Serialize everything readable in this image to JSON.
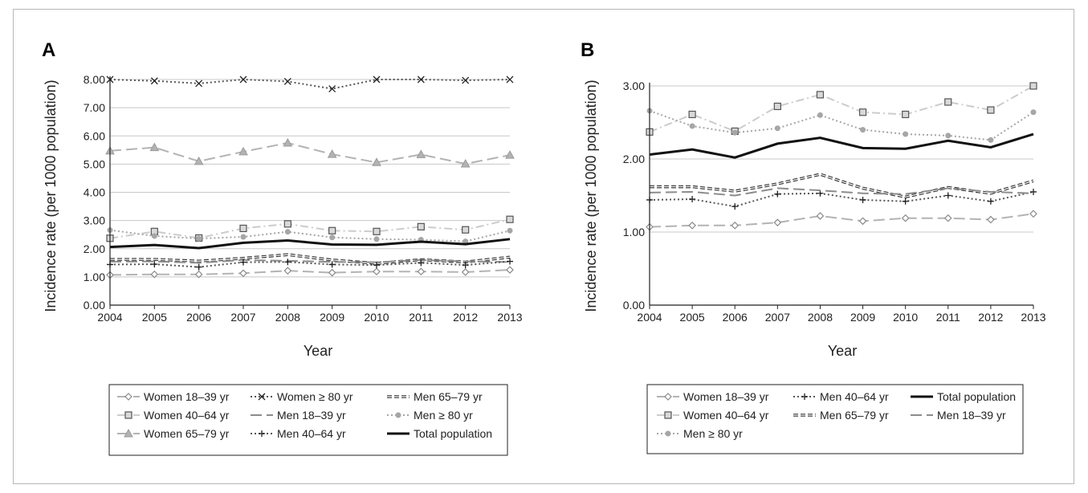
{
  "chart_data": [
    {
      "type": "line",
      "panel": "A",
      "xlabel": "Year",
      "ylabel": "Incidence rate (per 1000 population)",
      "x": [
        2004,
        2005,
        2006,
        2007,
        2008,
        2009,
        2010,
        2011,
        2012,
        2013
      ],
      "ylim": [
        0,
        8
      ],
      "yticks": [
        "0.00",
        "1.00",
        "2.00",
        "3.00",
        "4.00",
        "5.00",
        "6.00",
        "7.00",
        "8.00"
      ],
      "grid": true,
      "legend_position": "bottom",
      "series": [
        {
          "name": "Women 18–39 yr",
          "values": [
            1.07,
            1.09,
            1.09,
            1.13,
            1.22,
            1.15,
            1.19,
            1.19,
            1.17,
            1.25
          ],
          "style": "long-dash",
          "color": "#b3b3b3",
          "marker": "diamond"
        },
        {
          "name": "Women ≥ 80 yr",
          "values": [
            8.0,
            7.95,
            7.86,
            8.22,
            7.93,
            7.67,
            8.05,
            8.22,
            7.97,
            8.0
          ],
          "style": "dotted",
          "color": "#555555",
          "marker": "x"
        },
        {
          "name": "Men 65–79 yr",
          "values": [
            1.62,
            1.62,
            1.56,
            1.66,
            1.79,
            1.6,
            1.48,
            1.61,
            1.53,
            1.7
          ],
          "style": "double-dash",
          "color": "#333333",
          "marker": "none"
        },
        {
          "name": "Women 40–64 yr",
          "values": [
            2.37,
            2.61,
            2.38,
            2.72,
            2.88,
            2.64,
            2.61,
            2.78,
            2.67,
            3.04
          ],
          "style": "dash-dot",
          "color": "#cccccc",
          "marker": "square"
        },
        {
          "name": "Men 18–39 yr",
          "values": [
            1.54,
            1.55,
            1.5,
            1.6,
            1.57,
            1.53,
            1.52,
            1.6,
            1.55,
            1.53
          ],
          "style": "long-dash",
          "color": "#8c8c8c",
          "marker": "none"
        },
        {
          "name": "Men ≥ 80 yr",
          "values": [
            2.66,
            2.45,
            2.36,
            2.42,
            2.6,
            2.4,
            2.34,
            2.32,
            2.26,
            2.64
          ],
          "style": "dotted",
          "color": "#a6a6a6",
          "marker": "circle"
        },
        {
          "name": "Women 65–79 yr",
          "values": [
            5.47,
            5.59,
            5.1,
            5.44,
            5.75,
            5.35,
            5.06,
            5.34,
            5.01,
            5.32
          ],
          "style": "long-dash",
          "color": "#b3b3b3",
          "marker": "triangle"
        },
        {
          "name": "Men 40–64 yr",
          "values": [
            1.44,
            1.45,
            1.35,
            1.52,
            1.53,
            1.44,
            1.42,
            1.5,
            1.42,
            1.55
          ],
          "style": "dotted",
          "color": "#555555",
          "marker": "plus"
        },
        {
          "name": "Total population",
          "values": [
            2.06,
            2.13,
            2.02,
            2.21,
            2.29,
            2.15,
            2.14,
            2.25,
            2.16,
            2.34
          ],
          "style": "solid",
          "color": "#111111",
          "marker": "none"
        }
      ],
      "legend": [
        "Women 18–39 yr",
        "Women ≥ 80 yr",
        "Men 65–79 yr",
        "Women 40–64 yr",
        "Men 18–39 yr",
        "Men ≥ 80 yr",
        "Women 65–79 yr",
        "Men 40–64 yr",
        "Total population"
      ]
    },
    {
      "type": "line",
      "panel": "B",
      "xlabel": "Year",
      "ylabel": "Incidence rate (per 1000 population)",
      "x": [
        2004,
        2005,
        2006,
        2007,
        2008,
        2009,
        2010,
        2011,
        2012,
        2013
      ],
      "ylim": [
        0,
        3
      ],
      "yticks": [
        "0.00",
        "1.00",
        "2.00",
        "3.00"
      ],
      "grid": true,
      "legend_position": "bottom",
      "series": [
        {
          "name": "Women 18–39 yr",
          "values": [
            1.07,
            1.09,
            1.09,
            1.13,
            1.22,
            1.15,
            1.19,
            1.19,
            1.17,
            1.25
          ],
          "style": "long-dash",
          "color": "#b3b3b3",
          "marker": "diamond"
        },
        {
          "name": "Men 40–64 yr",
          "values": [
            1.44,
            1.45,
            1.35,
            1.52,
            1.53,
            1.44,
            1.42,
            1.5,
            1.42,
            1.55
          ],
          "style": "dotted",
          "color": "#555555",
          "marker": "plus"
        },
        {
          "name": "Total population",
          "values": [
            2.06,
            2.13,
            2.02,
            2.21,
            2.29,
            2.15,
            2.14,
            2.25,
            2.16,
            2.34
          ],
          "style": "solid",
          "color": "#111111",
          "marker": "none"
        },
        {
          "name": "Women 40–64 yr",
          "values": [
            2.37,
            2.61,
            2.38,
            2.72,
            2.88,
            2.64,
            2.61,
            2.78,
            2.67,
            3.04
          ],
          "style": "dash-dot",
          "color": "#cccccc",
          "marker": "square"
        },
        {
          "name": "Men 65–79 yr",
          "values": [
            1.62,
            1.62,
            1.56,
            1.66,
            1.79,
            1.6,
            1.48,
            1.61,
            1.53,
            1.7
          ],
          "style": "double-dash",
          "color": "#333333",
          "marker": "none"
        },
        {
          "name": "Men 18–39 yr",
          "values": [
            1.54,
            1.55,
            1.5,
            1.6,
            1.57,
            1.53,
            1.52,
            1.6,
            1.55,
            1.53
          ],
          "style": "long-dash",
          "color": "#8c8c8c",
          "marker": "none"
        },
        {
          "name": "Men ≥ 80 yr",
          "values": [
            2.66,
            2.45,
            2.36,
            2.42,
            2.6,
            2.4,
            2.34,
            2.32,
            2.26,
            2.64
          ],
          "style": "dotted",
          "color": "#a6a6a6",
          "marker": "circle"
        }
      ],
      "legend": [
        "Women 18–39 yr",
        "Men 40–64 yr",
        "Total population",
        "Women 40–64 yr",
        "Men 65–79 yr",
        "Men 18–39 yr",
        "Men ≥ 80 yr"
      ]
    }
  ]
}
